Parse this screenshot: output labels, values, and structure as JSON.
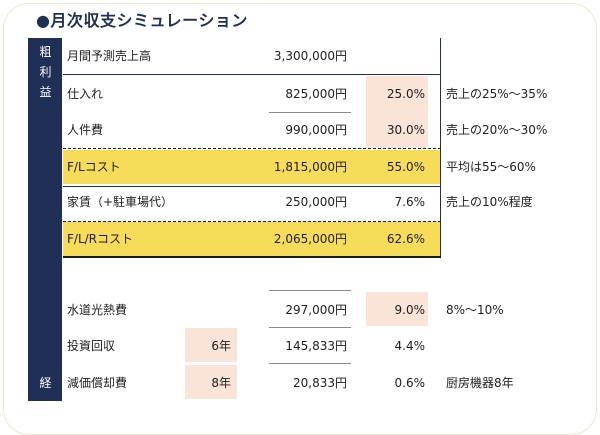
{
  "title": "●月次収支シミュレーション",
  "side_labels": {
    "gross_profit": [
      "粗",
      "利",
      "益"
    ],
    "expense": "経"
  },
  "rows": [
    {
      "label": "月間予測売上高",
      "amount": "3,300,000円",
      "percent": "",
      "note": ""
    },
    {
      "label": "仕入れ",
      "amount": "825,000円",
      "percent": "25.0%",
      "note": "売上の25%〜35%"
    },
    {
      "label": "人件費",
      "amount": "990,000円",
      "percent": "30.0%",
      "note": "売上の20%〜30%"
    },
    {
      "label": "F/Lコスト",
      "amount": "1,815,000円",
      "percent": "55.0%",
      "note": "平均は55〜60%"
    },
    {
      "label": "家賃（+駐車場代）",
      "amount": "250,000円",
      "percent": "7.6%",
      "note": "売上の10%程度"
    },
    {
      "label": "F/L/Rコスト",
      "amount": "2,065,000円",
      "percent": "62.6%",
      "note": ""
    },
    {
      "label": "水道光熱費",
      "amount": "297,000円",
      "percent": "9.0%",
      "note": "8%〜10%"
    },
    {
      "label": "投資回収",
      "years": "6年",
      "amount": "145,833円",
      "percent": "4.4%",
      "note": ""
    },
    {
      "label": "減価償却費",
      "years": "8年",
      "amount": "20,833円",
      "percent": "0.6%",
      "note": "厨房機器8年"
    }
  ],
  "colors": {
    "navy": "#1f2f55",
    "highlight_yellow": "#f7dc5a",
    "percent_peach": "#fae3d7",
    "frame_border": "#ece7cf"
  }
}
